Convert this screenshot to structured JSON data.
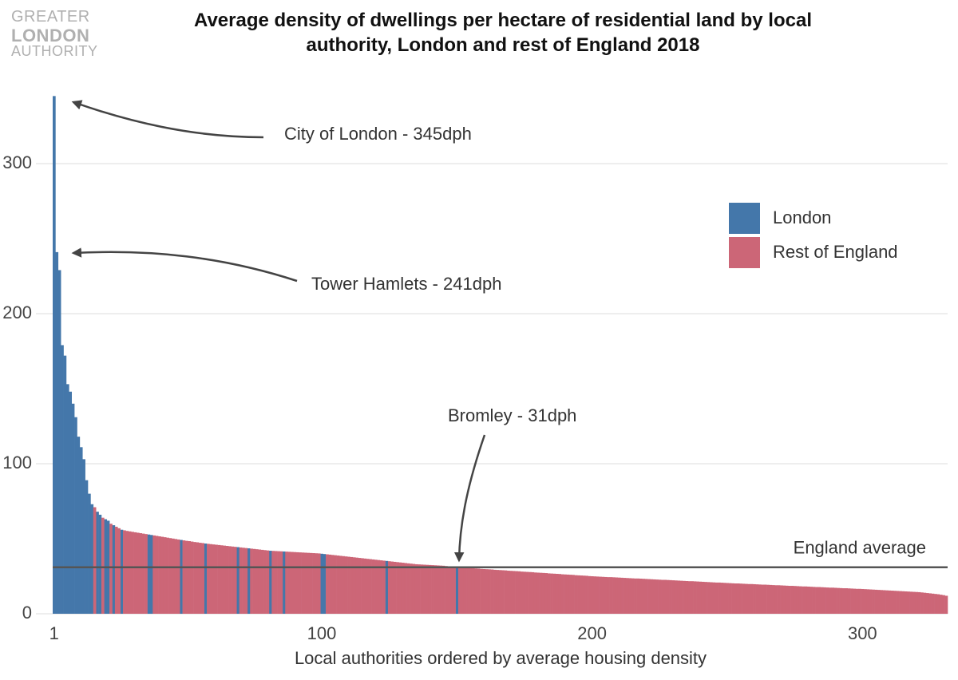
{
  "logo": {
    "line1": "GREATER",
    "line2": "LONDON",
    "line3": "AUTHORITY"
  },
  "chart_data": {
    "type": "bar",
    "title": "Average density of dwellings per hectare of residential land by local authority, London and rest of England 2018",
    "x_label": "Local authorities ordered by average housing density",
    "xlim": [
      0.5,
      331.5
    ],
    "xticks": [
      1,
      100,
      200,
      300
    ],
    "ylim": [
      0,
      347
    ],
    "yticks": [
      0,
      100,
      200,
      300
    ],
    "grid": true,
    "legend_position": "right",
    "average_line": {
      "label": "England average",
      "value": 31,
      "color": "#555555"
    },
    "annotations": [
      {
        "text": "City of London - 345dph"
      },
      {
        "text": "Tower Hamlets - 241dph"
      },
      {
        "text": "Bromley - 31dph"
      }
    ],
    "series": [
      {
        "name": "London",
        "color": "#4477aa",
        "x": [
          1,
          2,
          3,
          4,
          5,
          6,
          7,
          8,
          9,
          10,
          11,
          12,
          13,
          14,
          15,
          17,
          18,
          20,
          21,
          23,
          26,
          36,
          37,
          48,
          57,
          69,
          73,
          81,
          86,
          100,
          101,
          124,
          150
        ],
        "values": [
          345,
          241,
          229,
          179,
          172,
          153,
          148,
          140,
          131,
          118,
          111,
          103,
          89,
          80,
          73,
          68,
          66,
          63,
          62,
          59,
          56,
          52.8,
          52.5,
          49.2,
          46.8,
          44.4,
          43.6,
          42,
          41.5,
          40,
          39.8,
          35.2,
          31
        ]
      },
      {
        "name": "Rest of England",
        "color": "#cc6677",
        "x": [
          16,
          19,
          22,
          24,
          25,
          27,
          28,
          29,
          30,
          31,
          32,
          33,
          34,
          35,
          38,
          39,
          40,
          41,
          42,
          43,
          44,
          45,
          46,
          47,
          49,
          50,
          51,
          52,
          53,
          54,
          55,
          56,
          58,
          59,
          60,
          61,
          62,
          63,
          64,
          65,
          66,
          67,
          68,
          70,
          71,
          72,
          74,
          75,
          76,
          77,
          78,
          79,
          80,
          82,
          83,
          84,
          85,
          87,
          88,
          89,
          90,
          91,
          92,
          93,
          94,
          95,
          96,
          97,
          98,
          99,
          102,
          103,
          104,
          105,
          106,
          107,
          108,
          109,
          110,
          111,
          112,
          113,
          114,
          115,
          116,
          117,
          118,
          119,
          120,
          121,
          122,
          123,
          125,
          126,
          127,
          128,
          129,
          130,
          131,
          132,
          133,
          134,
          135,
          136,
          137,
          138,
          139,
          140,
          141,
          142,
          143,
          144,
          145,
          146,
          147,
          148,
          149,
          151,
          152,
          153,
          154,
          155,
          156,
          157,
          158,
          159,
          160,
          161,
          162,
          163,
          164,
          165,
          166,
          167,
          168,
          169,
          170,
          171,
          172,
          173,
          174,
          175,
          176,
          177,
          178,
          179,
          180,
          181,
          182,
          183,
          184,
          185,
          186,
          187,
          188,
          189,
          190,
          191,
          192,
          193,
          194,
          195,
          196,
          197,
          198,
          199,
          200,
          201,
          202,
          203,
          204,
          205,
          206,
          207,
          208,
          209,
          210,
          211,
          212,
          213,
          214,
          215,
          216,
          217,
          218,
          219,
          220,
          221,
          222,
          223,
          224,
          225,
          226,
          227,
          228,
          229,
          230,
          231,
          232,
          233,
          234,
          235,
          236,
          237,
          238,
          239,
          240,
          241,
          242,
          243,
          244,
          245,
          246,
          247,
          248,
          249,
          250,
          251,
          252,
          253,
          254,
          255,
          256,
          257,
          258,
          259,
          260,
          261,
          262,
          263,
          264,
          265,
          266,
          267,
          268,
          269,
          270,
          271,
          272,
          273,
          274,
          275,
          276,
          277,
          278,
          279,
          280,
          281,
          282,
          283,
          284,
          285,
          286,
          287,
          288,
          289,
          290,
          291,
          292,
          293,
          294,
          295,
          296,
          297,
          298,
          299,
          300,
          301,
          302,
          303,
          304,
          305,
          306,
          307,
          308,
          309,
          310,
          311,
          312,
          313,
          314,
          315,
          316,
          317,
          318,
          319,
          320,
          321,
          322,
          323,
          324,
          325,
          326,
          327,
          328,
          329,
          330,
          331
        ],
        "values": [
          71,
          64,
          60,
          58,
          57,
          55.6,
          55.2,
          54.9,
          54.6,
          54.3,
          54,
          53.7,
          53.4,
          53.1,
          52.2,
          51.9,
          51.6,
          51.3,
          51,
          50.7,
          50.4,
          50.1,
          49.8,
          49.5,
          48.9,
          48.6,
          48.4,
          48.1,
          47.8,
          47.6,
          47.3,
          47.1,
          46.6,
          46.4,
          46.2,
          46,
          45.8,
          45.6,
          45.4,
          45.2,
          45,
          44.8,
          44.6,
          44.2,
          44,
          43.8,
          43.4,
          43.2,
          43,
          42.8,
          42.6,
          42.4,
          42.2,
          41.9,
          41.8,
          41.7,
          41.6,
          41.4,
          41.3,
          41.2,
          41.1,
          41,
          40.9,
          40.8,
          40.7,
          40.6,
          40.5,
          40.4,
          40.3,
          40.2,
          39.6,
          39.4,
          39.2,
          39,
          38.8,
          38.6,
          38.4,
          38.2,
          38,
          37.8,
          37.6,
          37.4,
          37.2,
          37,
          36.8,
          36.6,
          36.4,
          36.2,
          36,
          35.8,
          35.6,
          35.4,
          35,
          34.8,
          34.6,
          34.4,
          34.2,
          34,
          33.8,
          33.6,
          33.4,
          33.2,
          33,
          32.9,
          32.8,
          32.7,
          32.6,
          32.5,
          32.4,
          32.3,
          32.2,
          32.1,
          32,
          31.8,
          31.6,
          31.4,
          31.2,
          30.9,
          30.8,
          30.7,
          30.5,
          30.4,
          30.3,
          30.2,
          30.1,
          29.9,
          29.8,
          29.7,
          29.6,
          29.5,
          29.3,
          29.2,
          29.1,
          29,
          28.9,
          28.7,
          28.6,
          28.5,
          28.4,
          28.3,
          28.1,
          28,
          27.9,
          27.8,
          27.7,
          27.5,
          27.4,
          27.3,
          27.2,
          27.1,
          26.9,
          26.8,
          26.7,
          26.6,
          26.5,
          26.3,
          26.2,
          26.1,
          26,
          25.9,
          25.7,
          25.6,
          25.5,
          25.4,
          25.3,
          25.1,
          25,
          24.9,
          24.8,
          24.7,
          24.6,
          24.5,
          24.4,
          24.4,
          24.3,
          24.2,
          24.1,
          24,
          23.9,
          23.8,
          23.7,
          23.6,
          23.5,
          23.5,
          23.4,
          23.3,
          23.2,
          23.1,
          23,
          22.9,
          22.8,
          22.7,
          22.6,
          22.6,
          22.5,
          22.4,
          22.3,
          22.2,
          22.1,
          22,
          21.9,
          21.8,
          21.7,
          21.7,
          21.6,
          21.5,
          21.4,
          21.3,
          21.2,
          21.1,
          21,
          20.9,
          20.8,
          20.8,
          20.7,
          20.6,
          20.5,
          20.4,
          20.3,
          20.2,
          20.2,
          20.1,
          20,
          19.9,
          19.8,
          19.8,
          19.7,
          19.6,
          19.5,
          19.4,
          19.4,
          19.3,
          19.2,
          19.1,
          19,
          19,
          18.9,
          18.8,
          18.7,
          18.6,
          18.6,
          18.5,
          18.4,
          18.3,
          18.2,
          18.2,
          18.1,
          18,
          17.9,
          17.8,
          17.8,
          17.7,
          17.6,
          17.5,
          17.4,
          17.4,
          17.3,
          17.2,
          17.1,
          17,
          17,
          16.9,
          16.8,
          16.7,
          16.6,
          16.6,
          16.5,
          16.4,
          16.3,
          16.2,
          16.1,
          16,
          15.9,
          15.8,
          15.7,
          15.6,
          15.5,
          15.4,
          15.3,
          15.2,
          15.1,
          15,
          14.9,
          14.8,
          14.7,
          14.6,
          14.5,
          14.4,
          14.2,
          14,
          13.8,
          13.6,
          13.4,
          13.2,
          13,
          12.7,
          12.4,
          12
        ]
      }
    ]
  }
}
